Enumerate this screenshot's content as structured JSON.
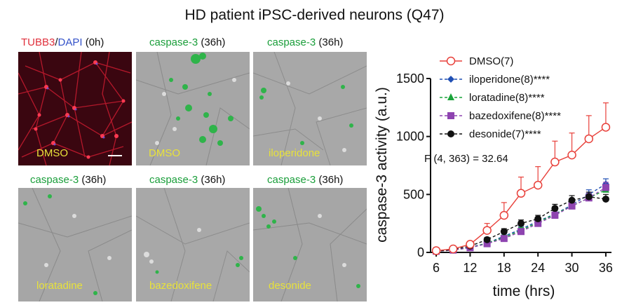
{
  "figure_title": "HD patient iPSC-derived neurons (Q47)",
  "panels": [
    {
      "stain_a": "TUBB3",
      "sep": "/",
      "stain_b": "DAPI",
      "time": " (0h)",
      "condition": "DMSO"
    },
    {
      "stain_a": "caspase-3",
      "time": " (36h)",
      "condition": "DMSO"
    },
    {
      "stain_a": "caspase-3",
      "time": " (36h)",
      "condition": "iloperidone"
    },
    {
      "stain_a": "caspase-3",
      "time": " (36h)",
      "condition": "loratadine"
    },
    {
      "stain_a": "caspase-3",
      "time": " (36h)",
      "condition": "bazedoxifene"
    },
    {
      "stain_a": "caspase-3",
      "time": " (36h)",
      "condition": "desonide"
    }
  ],
  "chart_data": {
    "type": "line",
    "xlabel": "time (hrs)",
    "ylabel": "caspase-3 activity (a.u.)",
    "x_ticks": [
      6,
      12,
      18,
      24,
      30,
      36
    ],
    "y_ticks": [
      0,
      500,
      1000,
      1500
    ],
    "xlim": [
      5,
      37
    ],
    "ylim": [
      0,
      1500
    ],
    "annotation": "F (4, 363) = 32.64",
    "legend_position": "top-left",
    "x": [
      6,
      9,
      12,
      15,
      18,
      21,
      24,
      27,
      30,
      33,
      36
    ],
    "series": [
      {
        "name": "DMSO(7)",
        "color": "#e8403a",
        "marker": "open-circle",
        "style": "solid",
        "values": [
          15,
          30,
          70,
          190,
          320,
          510,
          580,
          780,
          840,
          980,
          1080
        ],
        "errors": [
          5,
          10,
          25,
          60,
          110,
          140,
          160,
          180,
          190,
          200,
          210
        ]
      },
      {
        "name": "iloperidone(8)****",
        "color": "#1f4fb4",
        "marker": "diamond",
        "style": "dashed",
        "values": [
          10,
          20,
          45,
          80,
          140,
          200,
          270,
          330,
          410,
          500,
          590
        ],
        "errors": [
          4,
          6,
          10,
          15,
          20,
          25,
          25,
          30,
          35,
          40,
          45
        ]
      },
      {
        "name": "loratadine(8)****",
        "color": "#1aa33a",
        "marker": "triangle",
        "style": "dashed",
        "values": [
          10,
          20,
          40,
          80,
          130,
          190,
          260,
          330,
          400,
          470,
          540
        ],
        "errors": [
          4,
          6,
          10,
          15,
          20,
          25,
          25,
          30,
          35,
          40,
          45
        ]
      },
      {
        "name": "bazedoxifene(8)****",
        "color": "#8e44b0",
        "marker": "square",
        "style": "dashed",
        "values": [
          10,
          20,
          40,
          75,
          120,
          180,
          250,
          320,
          400,
          470,
          560
        ],
        "errors": [
          4,
          6,
          10,
          15,
          20,
          25,
          25,
          30,
          35,
          40,
          45
        ]
      },
      {
        "name": "desonide(7)****",
        "color": "#111111",
        "marker": "filled-circle",
        "style": "dashed",
        "values": [
          10,
          25,
          55,
          110,
          180,
          250,
          290,
          380,
          450,
          480,
          460
        ],
        "errors": [
          4,
          8,
          12,
          20,
          25,
          30,
          30,
          35,
          40,
          40,
          40
        ]
      }
    ]
  }
}
